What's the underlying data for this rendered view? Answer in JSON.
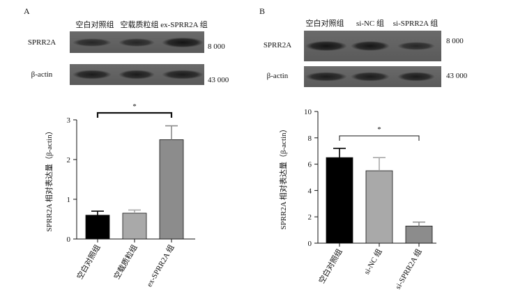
{
  "panels": [
    {
      "letter": "A",
      "blot": {
        "lane_labels": [
          "空白对照组",
          "空载质粒组",
          "ex-SPRR2A 组"
        ],
        "rows": [
          {
            "label": "SPRR2A",
            "size": "8 000",
            "intensity": [
              0.6,
              0.62,
              0.95
            ]
          },
          {
            "label": "β-actin",
            "size": "43 000",
            "intensity": [
              0.8,
              0.8,
              0.8
            ]
          }
        ]
      },
      "significance": "*"
    },
    {
      "letter": "B",
      "blot": {
        "lane_labels": [
          "空白对照组",
          "si-NC 组",
          "si-SPRR2A 组"
        ],
        "rows": [
          {
            "label": "SPRR2A",
            "size": "8 000",
            "intensity": [
              0.95,
              0.9,
              0.6
            ]
          },
          {
            "label": "β-actin",
            "size": "43 000",
            "intensity": [
              0.8,
              0.8,
              0.8
            ]
          }
        ]
      },
      "significance": "*"
    }
  ],
  "chart_data": [
    {
      "type": "bar",
      "categories": [
        "空白对照组",
        "空载质粒组",
        "ex-SPRR2A 组"
      ],
      "values": [
        0.6,
        0.65,
        2.5
      ],
      "errors": [
        0.1,
        0.08,
        0.35
      ],
      "bar_colors": [
        "#000000",
        "#a9a9a9",
        "#8c8c8c"
      ],
      "ylabel": "SPRR2A 相对表达量（β-actin）",
      "ylim": [
        0,
        3
      ],
      "yticks": [
        0,
        1,
        2,
        3
      ],
      "significance": {
        "from": 0,
        "to": 2,
        "label": "*"
      }
    },
    {
      "type": "bar",
      "categories": [
        "空白对照组",
        "si-NC 组",
        "si-SPRR2A 组"
      ],
      "values": [
        6.5,
        5.5,
        1.3
      ],
      "errors": [
        0.7,
        1.0,
        0.3
      ],
      "bar_colors": [
        "#000000",
        "#a9a9a9",
        "#8c8c8c"
      ],
      "ylabel": "SPRR2A 相对表达量（β-actin）",
      "ylim": [
        0,
        10
      ],
      "yticks": [
        0,
        2,
        4,
        6,
        8,
        10
      ],
      "significance": {
        "from": 0,
        "to": 2,
        "label": "*"
      }
    }
  ]
}
